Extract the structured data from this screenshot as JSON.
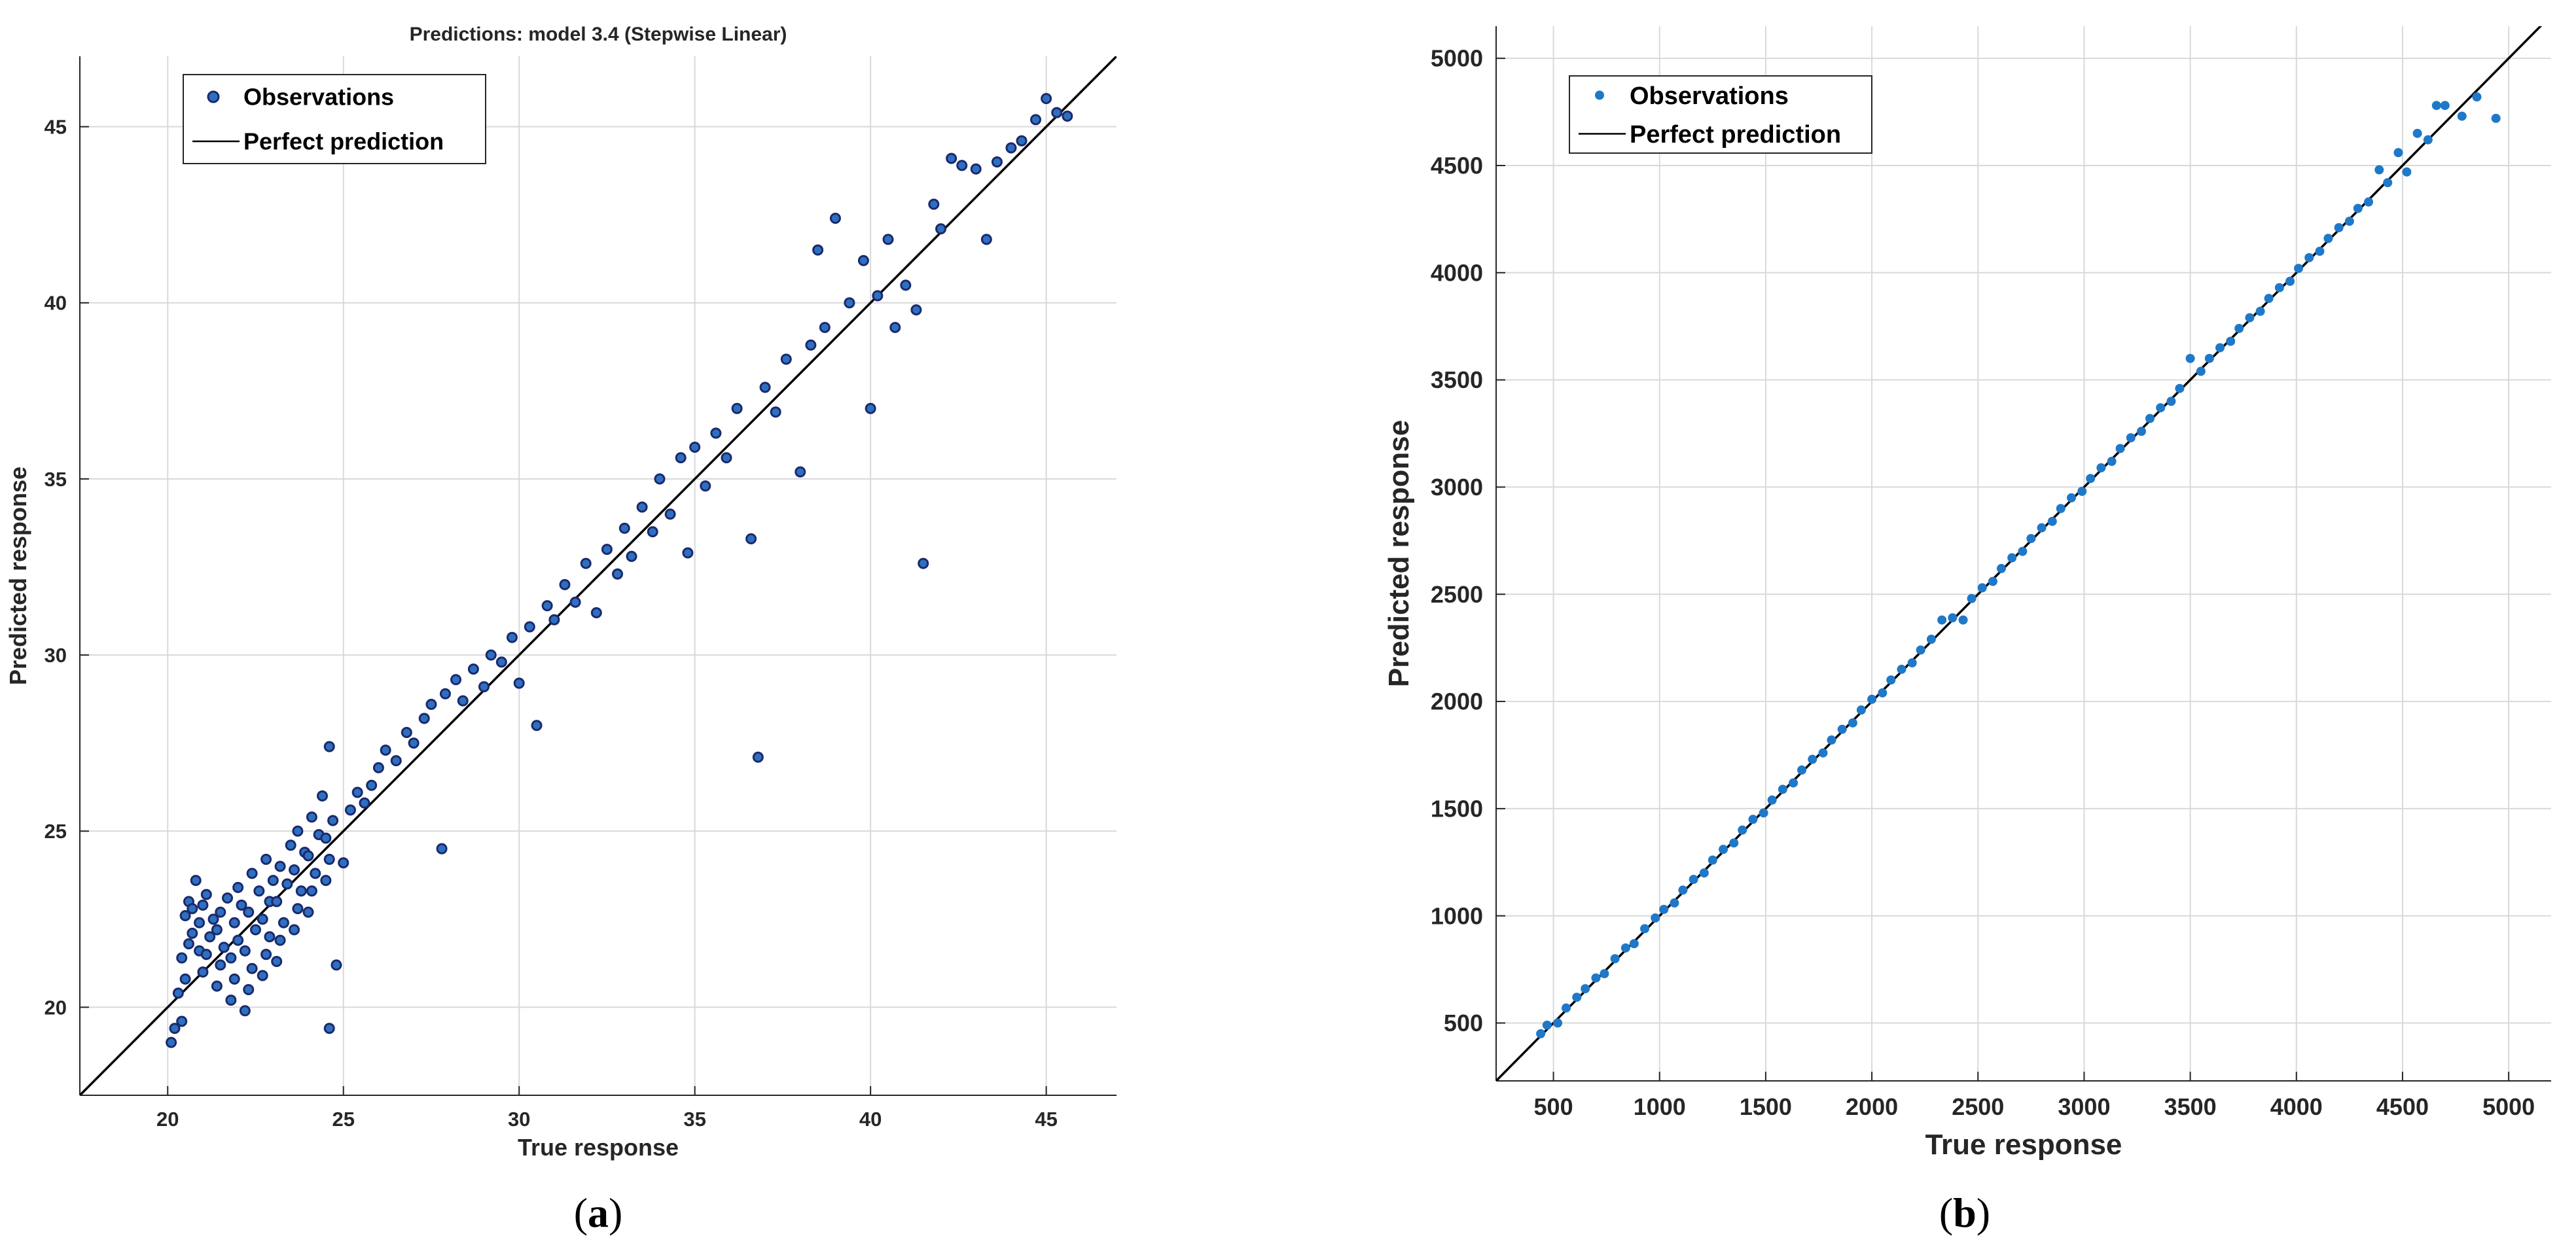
{
  "panels": [
    {
      "caption": "(a)",
      "caption_letter": "a",
      "marker_color": "#1a2a6c",
      "marker_fill": "#2f6fc0",
      "line_color": "#000000"
    },
    {
      "caption": "(b)",
      "caption_letter": "b",
      "marker_color": "#1f78c8",
      "marker_fill": "#1f78c8",
      "line_color": "#000000"
    }
  ],
  "chart_data": [
    {
      "type": "scatter",
      "title": "Predictions: model 3.4 (Stepwise Linear)",
      "xlabel": "True response",
      "ylabel": "Predicted response",
      "xlim": [
        17.5,
        47
      ],
      "ylim": [
        17.5,
        47
      ],
      "xticks": [
        20,
        25,
        30,
        35,
        40,
        45
      ],
      "yticks": [
        20,
        25,
        30,
        35,
        40,
        45
      ],
      "grid": true,
      "legend_position": "top-left",
      "series": [
        {
          "name": "Observations",
          "points": [
            [
              20.1,
              19.0
            ],
            [
              20.2,
              19.4
            ],
            [
              20.4,
              19.6
            ],
            [
              20.3,
              20.4
            ],
            [
              20.5,
              20.8
            ],
            [
              20.4,
              21.4
            ],
            [
              20.6,
              21.8
            ],
            [
              20.7,
              22.1
            ],
            [
              20.5,
              22.6
            ],
            [
              20.6,
              23.0
            ],
            [
              20.8,
              23.6
            ],
            [
              20.7,
              22.8
            ],
            [
              20.9,
              21.6
            ],
            [
              20.9,
              22.4
            ],
            [
              21.0,
              21.0
            ],
            [
              21.1,
              21.5
            ],
            [
              21.2,
              22.0
            ],
            [
              21.3,
              22.5
            ],
            [
              21.0,
              22.9
            ],
            [
              21.1,
              23.2
            ],
            [
              21.4,
              20.6
            ],
            [
              21.5,
              21.2
            ],
            [
              21.6,
              21.7
            ],
            [
              21.4,
              22.2
            ],
            [
              21.5,
              22.7
            ],
            [
              21.7,
              23.1
            ],
            [
              21.8,
              20.2
            ],
            [
              21.9,
              20.8
            ],
            [
              21.8,
              21.4
            ],
            [
              22.0,
              21.9
            ],
            [
              21.9,
              22.4
            ],
            [
              22.1,
              22.9
            ],
            [
              22.0,
              23.4
            ],
            [
              22.2,
              19.9
            ],
            [
              22.3,
              20.5
            ],
            [
              22.4,
              21.1
            ],
            [
              22.2,
              21.6
            ],
            [
              22.5,
              22.2
            ],
            [
              22.3,
              22.7
            ],
            [
              22.6,
              23.3
            ],
            [
              22.4,
              23.8
            ],
            [
              22.7,
              20.9
            ],
            [
              22.8,
              21.5
            ],
            [
              22.9,
              22.0
            ],
            [
              22.7,
              22.5
            ],
            [
              22.9,
              23.0
            ],
            [
              23.0,
              23.6
            ],
            [
              22.8,
              24.2
            ],
            [
              23.1,
              21.3
            ],
            [
              23.2,
              21.9
            ],
            [
              23.3,
              22.4
            ],
            [
              23.1,
              23.0
            ],
            [
              23.4,
              23.5
            ],
            [
              23.2,
              24.0
            ],
            [
              23.5,
              24.6
            ],
            [
              23.6,
              22.2
            ],
            [
              23.7,
              22.8
            ],
            [
              23.8,
              23.3
            ],
            [
              23.6,
              23.9
            ],
            [
              23.9,
              24.4
            ],
            [
              23.7,
              25.0
            ],
            [
              24.0,
              22.7
            ],
            [
              24.1,
              23.3
            ],
            [
              24.2,
              23.8
            ],
            [
              24.0,
              24.3
            ],
            [
              24.3,
              24.9
            ],
            [
              24.1,
              25.4
            ],
            [
              24.4,
              26.0
            ],
            [
              24.5,
              23.6
            ],
            [
              24.6,
              24.2
            ],
            [
              24.5,
              24.8
            ],
            [
              24.7,
              25.3
            ],
            [
              24.6,
              27.4
            ],
            [
              24.6,
              19.4
            ],
            [
              24.8,
              21.2
            ],
            [
              25.0,
              24.1
            ],
            [
              25.2,
              25.6
            ],
            [
              25.4,
              26.1
            ],
            [
              25.6,
              25.8
            ],
            [
              25.8,
              26.3
            ],
            [
              26.0,
              26.8
            ],
            [
              26.2,
              27.3
            ],
            [
              26.5,
              27.0
            ],
            [
              26.8,
              27.8
            ],
            [
              27.0,
              27.5
            ],
            [
              27.3,
              28.2
            ],
            [
              27.5,
              28.6
            ],
            [
              27.8,
              24.5
            ],
            [
              27.9,
              28.9
            ],
            [
              28.2,
              29.3
            ],
            [
              28.4,
              28.7
            ],
            [
              28.7,
              29.6
            ],
            [
              29.0,
              29.1
            ],
            [
              29.2,
              30.0
            ],
            [
              29.5,
              29.8
            ],
            [
              29.8,
              30.5
            ],
            [
              30.0,
              29.2
            ],
            [
              30.3,
              30.8
            ],
            [
              30.5,
              28.0
            ],
            [
              30.8,
              31.4
            ],
            [
              31.0,
              31.0
            ],
            [
              31.3,
              32.0
            ],
            [
              31.6,
              31.5
            ],
            [
              31.9,
              32.6
            ],
            [
              32.2,
              31.2
            ],
            [
              32.5,
              33.0
            ],
            [
              32.8,
              32.3
            ],
            [
              33.0,
              33.6
            ],
            [
              33.2,
              32.8
            ],
            [
              33.5,
              34.2
            ],
            [
              33.8,
              33.5
            ],
            [
              34.0,
              35.0
            ],
            [
              34.3,
              34.0
            ],
            [
              34.6,
              35.6
            ],
            [
              34.8,
              32.9
            ],
            [
              35.0,
              35.9
            ],
            [
              35.3,
              34.8
            ],
            [
              35.6,
              36.3
            ],
            [
              35.9,
              35.6
            ],
            [
              36.2,
              37.0
            ],
            [
              36.6,
              33.3
            ],
            [
              36.8,
              27.1
            ],
            [
              37.0,
              37.6
            ],
            [
              37.3,
              36.9
            ],
            [
              37.6,
              38.4
            ],
            [
              38.0,
              35.2
            ],
            [
              38.3,
              38.8
            ],
            [
              38.7,
              39.3
            ],
            [
              39.0,
              42.4
            ],
            [
              38.5,
              41.5
            ],
            [
              39.4,
              40.0
            ],
            [
              39.8,
              41.2
            ],
            [
              40.0,
              37.0
            ],
            [
              40.2,
              40.2
            ],
            [
              40.5,
              41.8
            ],
            [
              40.7,
              39.3
            ],
            [
              41.0,
              40.5
            ],
            [
              41.3,
              39.8
            ],
            [
              41.5,
              32.6
            ],
            [
              41.8,
              42.8
            ],
            [
              42.0,
              42.1
            ],
            [
              42.3,
              44.1
            ],
            [
              42.6,
              43.9
            ],
            [
              43.0,
              43.8
            ],
            [
              43.3,
              41.8
            ],
            [
              43.6,
              44.0
            ],
            [
              44.0,
              44.4
            ],
            [
              44.3,
              44.6
            ],
            [
              44.7,
              45.2
            ],
            [
              45.0,
              45.8
            ],
            [
              45.3,
              45.4
            ],
            [
              45.6,
              45.3
            ]
          ]
        },
        {
          "name": "Perfect prediction",
          "line": [
            [
              17.5,
              17.5
            ],
            [
              47,
              47
            ]
          ]
        }
      ]
    },
    {
      "type": "scatter",
      "title": "",
      "xlabel": "True response",
      "ylabel": "Predicted response",
      "xlim": [
        230,
        5200
      ],
      "ylim": [
        230,
        5150
      ],
      "xticks": [
        500,
        1000,
        1500,
        2000,
        2500,
        3000,
        3500,
        4000,
        4500,
        5000
      ],
      "yticks": [
        500,
        1000,
        1500,
        2000,
        2500,
        3000,
        3500,
        4000,
        4500,
        5000
      ],
      "grid": true,
      "legend_position": "top-left",
      "series": [
        {
          "name": "Observations",
          "points": [
            [
              440,
              450
            ],
            [
              470,
              490
            ],
            [
              520,
              500
            ],
            [
              560,
              570
            ],
            [
              610,
              620
            ],
            [
              650,
              660
            ],
            [
              700,
              710
            ],
            [
              740,
              730
            ],
            [
              790,
              800
            ],
            [
              840,
              850
            ],
            [
              880,
              870
            ],
            [
              930,
              940
            ],
            [
              980,
              990
            ],
            [
              1020,
              1030
            ],
            [
              1070,
              1060
            ],
            [
              1110,
              1120
            ],
            [
              1160,
              1170
            ],
            [
              1210,
              1200
            ],
            [
              1250,
              1260
            ],
            [
              1300,
              1310
            ],
            [
              1350,
              1340
            ],
            [
              1390,
              1400
            ],
            [
              1440,
              1450
            ],
            [
              1490,
              1480
            ],
            [
              1530,
              1540
            ],
            [
              1580,
              1590
            ],
            [
              1630,
              1620
            ],
            [
              1670,
              1680
            ],
            [
              1720,
              1730
            ],
            [
              1770,
              1760
            ],
            [
              1810,
              1820
            ],
            [
              1860,
              1870
            ],
            [
              1910,
              1900
            ],
            [
              1950,
              1960
            ],
            [
              2000,
              2010
            ],
            [
              2050,
              2040
            ],
            [
              2090,
              2100
            ],
            [
              2140,
              2150
            ],
            [
              2190,
              2180
            ],
            [
              2230,
              2240
            ],
            [
              2280,
              2290
            ],
            [
              2330,
              2380
            ],
            [
              2380,
              2390
            ],
            [
              2430,
              2380
            ],
            [
              2470,
              2480
            ],
            [
              2520,
              2530
            ],
            [
              2570,
              2560
            ],
            [
              2610,
              2620
            ],
            [
              2660,
              2670
            ],
            [
              2710,
              2700
            ],
            [
              2750,
              2760
            ],
            [
              2800,
              2810
            ],
            [
              2850,
              2840
            ],
            [
              2890,
              2900
            ],
            [
              2940,
              2950
            ],
            [
              2990,
              2980
            ],
            [
              3030,
              3040
            ],
            [
              3080,
              3090
            ],
            [
              3130,
              3120
            ],
            [
              3170,
              3180
            ],
            [
              3220,
              3230
            ],
            [
              3270,
              3260
            ],
            [
              3310,
              3320
            ],
            [
              3360,
              3370
            ],
            [
              3410,
              3400
            ],
            [
              3450,
              3460
            ],
            [
              3500,
              3600
            ],
            [
              3550,
              3540
            ],
            [
              3590,
              3600
            ],
            [
              3640,
              3650
            ],
            [
              3690,
              3680
            ],
            [
              3730,
              3740
            ],
            [
              3780,
              3790
            ],
            [
              3830,
              3820
            ],
            [
              3870,
              3880
            ],
            [
              3920,
              3930
            ],
            [
              3970,
              3960
            ],
            [
              4010,
              4020
            ],
            [
              4060,
              4070
            ],
            [
              4110,
              4100
            ],
            [
              4150,
              4160
            ],
            [
              4200,
              4210
            ],
            [
              4250,
              4240
            ],
            [
              4290,
              4300
            ],
            [
              4340,
              4330
            ],
            [
              4390,
              4480
            ],
            [
              4430,
              4420
            ],
            [
              4480,
              4560
            ],
            [
              4520,
              4470
            ],
            [
              4570,
              4650
            ],
            [
              4620,
              4620
            ],
            [
              4660,
              4780
            ],
            [
              4700,
              4780
            ],
            [
              4780,
              4730
            ],
            [
              4850,
              4820
            ],
            [
              4940,
              4720
            ]
          ]
        },
        {
          "name": "Perfect prediction",
          "line": [
            [
              230,
              230
            ],
            [
              5200,
              5200
            ]
          ]
        }
      ]
    }
  ]
}
